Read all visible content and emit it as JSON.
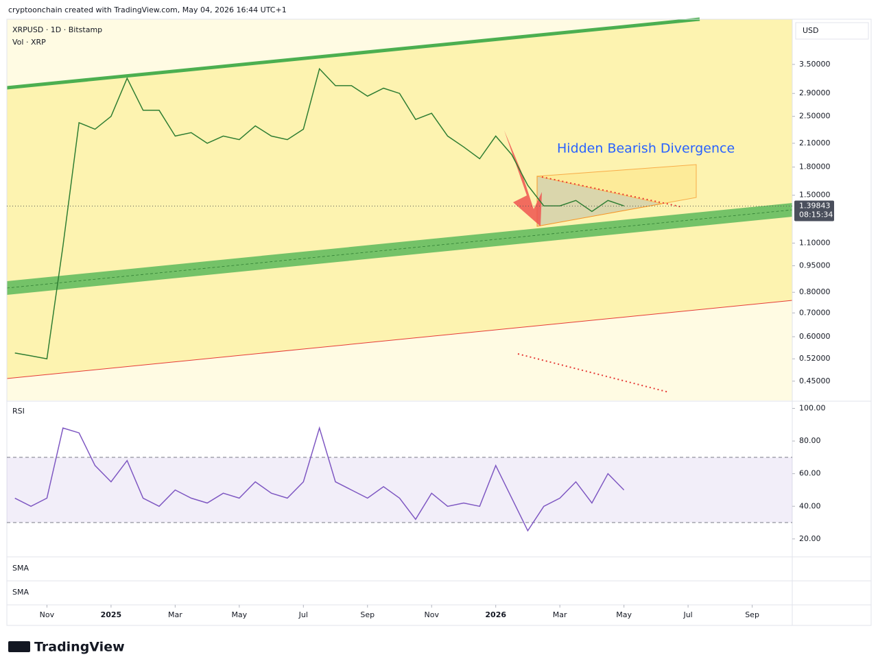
{
  "header": {
    "title": "cryptoonchain created with TradingView.com, May 04, 2026 16:44 UTC+1"
  },
  "chart_data": [
    {
      "type": "line",
      "title": "XRPUSD · 1D · Bitstamp",
      "subtitle": "Vol · XRP",
      "currency": "USD",
      "annotation": "Hidden Bearish Divergence",
      "log_scale": true,
      "color": "#2e7d32",
      "x": [
        -3,
        -2.5,
        -2,
        -1.5,
        -1,
        -0.5,
        0,
        0.5,
        1,
        1.5,
        2,
        2.5,
        3,
        3.5,
        4,
        4.5,
        5,
        5.5,
        6,
        6.5,
        7,
        7.5,
        8,
        8.5,
        9,
        9.5,
        10,
        10.5,
        11,
        11.5,
        12,
        12.5,
        13,
        13.5,
        14,
        14.5,
        15,
        15.5,
        16
      ],
      "values": [
        0.54,
        0.53,
        0.52,
        1.08,
        2.4,
        2.3,
        2.5,
        3.2,
        2.6,
        2.6,
        2.2,
        2.25,
        2.1,
        2.2,
        2.15,
        2.35,
        2.2,
        2.15,
        2.3,
        3.4,
        3.05,
        3.05,
        2.85,
        3.0,
        2.9,
        2.45,
        2.55,
        2.2,
        2.05,
        1.9,
        2.2,
        1.95,
        1.6,
        1.4,
        1.4,
        1.45,
        1.35,
        1.45,
        1.4
      ],
      "last_price": 1.39843,
      "countdown": "08:15:34",
      "xlim": [
        -3.25,
        21.25
      ],
      "xticks": [
        {
          "value": -2,
          "label": "Nov"
        },
        {
          "value": 0,
          "label": "2025"
        },
        {
          "value": 2,
          "label": "Mar"
        },
        {
          "value": 4,
          "label": "May"
        },
        {
          "value": 6,
          "label": "Jul"
        },
        {
          "value": 8,
          "label": "Sep"
        },
        {
          "value": 10,
          "label": "Nov"
        },
        {
          "value": 12,
          "label": "2026"
        },
        {
          "value": 14,
          "label": "Mar"
        },
        {
          "value": 16,
          "label": "May"
        },
        {
          "value": 18,
          "label": "Jul"
        },
        {
          "value": 20,
          "label": "Sep"
        }
      ],
      "ylim": [
        0.397,
        4.69
      ],
      "yticks": [
        {
          "value": 3.5,
          "label": "3.50000"
        },
        {
          "value": 2.9,
          "label": "2.90000"
        },
        {
          "value": 2.5,
          "label": "2.50000"
        },
        {
          "value": 2.1,
          "label": "2.10000"
        },
        {
          "value": 1.8,
          "label": "1.80000"
        },
        {
          "value": 1.5,
          "label": "1.50000"
        },
        {
          "value": 1.1,
          "label": "1.10000"
        },
        {
          "value": 0.95,
          "label": "0.95000"
        },
        {
          "value": 0.8,
          "label": "0.80000"
        },
        {
          "value": 0.7,
          "label": "0.70000"
        },
        {
          "value": 0.6,
          "label": "0.60000"
        },
        {
          "value": 0.52,
          "label": "0.52000"
        },
        {
          "value": 0.45,
          "label": "0.45000"
        }
      ]
    },
    {
      "type": "line",
      "title": "RSI",
      "color": "#7e57c2",
      "x": [
        -3,
        -2.5,
        -2,
        -1.5,
        -1,
        -0.5,
        0,
        0.5,
        1,
        1.5,
        2,
        2.5,
        3,
        3.5,
        4,
        4.5,
        5,
        5.5,
        6,
        6.5,
        7,
        7.5,
        8,
        8.5,
        9,
        9.5,
        10,
        10.5,
        11,
        11.5,
        12,
        12.5,
        13,
        13.5,
        14,
        14.5,
        15,
        15.5,
        16
      ],
      "values": [
        45,
        40,
        45,
        88,
        85,
        65,
        55,
        68,
        45,
        40,
        50,
        45,
        42,
        48,
        45,
        55,
        48,
        45,
        55,
        88,
        55,
        50,
        45,
        52,
        45,
        32,
        48,
        40,
        42,
        40,
        65,
        45,
        25,
        40,
        45,
        55,
        42,
        60,
        50
      ],
      "xlim": [
        -3.25,
        21.25
      ],
      "ylim": [
        9,
        104
      ],
      "band": [
        30,
        70
      ],
      "yticks": [
        {
          "value": 100,
          "label": "100.00"
        },
        {
          "value": 80,
          "label": "80.00"
        },
        {
          "value": 60,
          "label": "60.00"
        },
        {
          "value": 40,
          "label": "40.00"
        },
        {
          "value": 20,
          "label": "20.00"
        }
      ]
    }
  ],
  "panes": [
    "SMA",
    "SMA"
  ],
  "footer": {
    "logo": "TradingView"
  }
}
